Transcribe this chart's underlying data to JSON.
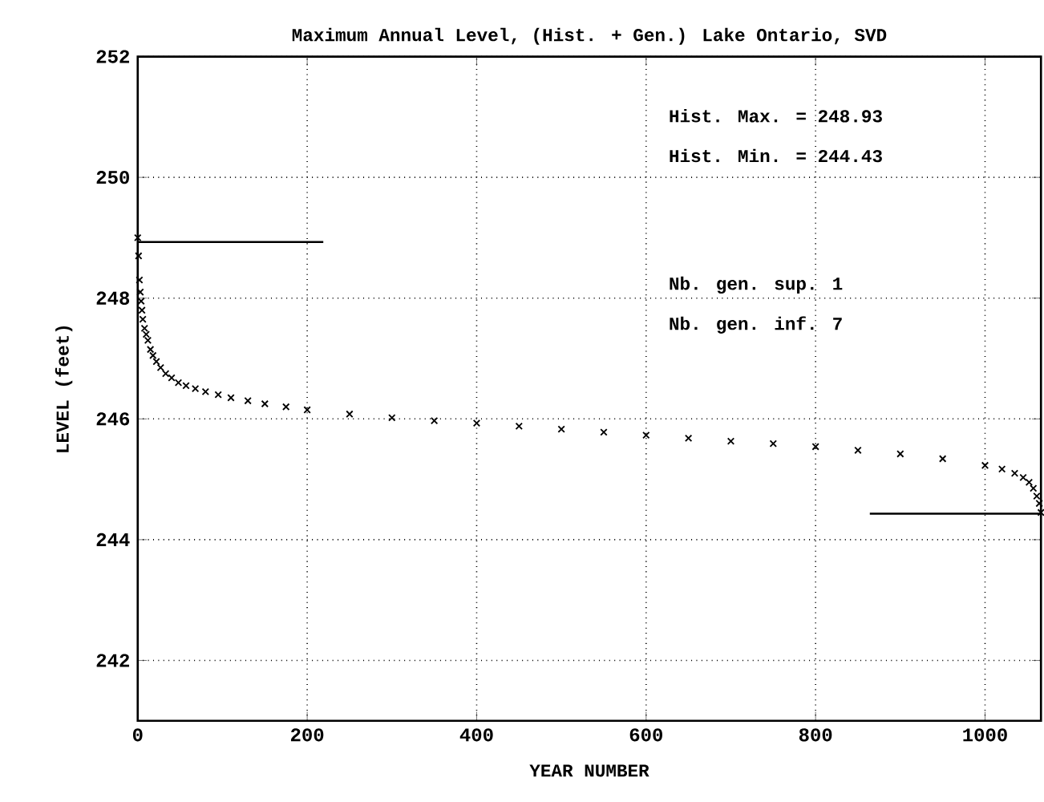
{
  "chart_data": {
    "type": "scatter",
    "title": "Maximum Annual Level, (Hist. + Gen.) Lake Ontario, SVD",
    "xlabel": "YEAR NUMBER",
    "ylabel": "LEVEL (feet)",
    "xlim": [
      0,
      1066
    ],
    "ylim": [
      241,
      252
    ],
    "xticks": [
      0,
      200,
      400,
      600,
      800,
      1000
    ],
    "yticks": [
      242,
      244,
      246,
      248,
      250,
      252
    ],
    "grid": true,
    "annotations": [
      "Hist. Max. = 248.93",
      "Hist. Min. = 244.43",
      "Nb. gen. sup.  1",
      "Nb. gen. inf.  7"
    ],
    "series": [
      {
        "color": "#000000",
        "marker": "cross",
        "x": [
          0,
          1,
          2,
          3,
          4,
          5,
          6,
          8,
          10,
          12,
          15,
          18,
          22,
          27,
          33,
          40,
          48,
          57,
          68,
          80,
          95,
          110,
          130,
          150,
          175,
          200,
          250,
          300,
          350,
          400,
          450,
          500,
          550,
          600,
          650,
          700,
          750,
          800,
          850,
          900,
          950,
          1000,
          1020,
          1035,
          1045,
          1052,
          1057,
          1061,
          1064,
          1066
        ],
        "values": [
          249.0,
          248.7,
          248.3,
          248.1,
          247.95,
          247.8,
          247.65,
          247.5,
          247.4,
          247.3,
          247.15,
          247.05,
          246.95,
          246.85,
          246.75,
          246.68,
          246.6,
          246.55,
          246.5,
          246.45,
          246.4,
          246.35,
          246.3,
          246.25,
          246.2,
          246.15,
          246.08,
          246.02,
          245.97,
          245.93,
          245.88,
          245.83,
          245.78,
          245.73,
          245.68,
          245.63,
          245.59,
          245.54,
          245.48,
          245.42,
          245.34,
          245.23,
          245.17,
          245.1,
          245.03,
          244.95,
          244.85,
          244.72,
          244.6,
          244.45
        ]
      },
      {
        "type": "line",
        "color": "#000000",
        "x": [
          0,
          219
        ],
        "values": [
          248.93,
          248.93
        ]
      },
      {
        "type": "line",
        "color": "#000000",
        "x": [
          864,
          1066
        ],
        "values": [
          244.43,
          244.43
        ]
      }
    ]
  }
}
